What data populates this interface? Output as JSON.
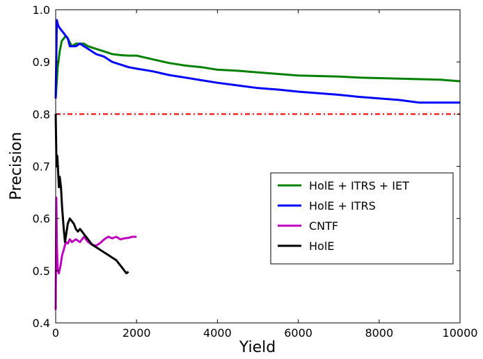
{
  "chart_data": {
    "type": "line",
    "title": "",
    "xlabel": "Yield",
    "ylabel": "Precision",
    "xlim": [
      0,
      10000
    ],
    "ylim": [
      0.4,
      1.0
    ],
    "x_ticks": [
      "0",
      "2000",
      "4000",
      "6000",
      "8000",
      "10000"
    ],
    "y_ticks": [
      "0.4",
      "0.5",
      "0.6",
      "0.7",
      "0.8",
      "0.9",
      "1.0"
    ],
    "grid": false,
    "legend_position": "center-right",
    "reference_line": {
      "y": 0.8,
      "style": "dash-dot",
      "color": "#ff0000"
    },
    "series": [
      {
        "name": "HolE + ITRS + IET",
        "color": "#008000",
        "points": [
          [
            0,
            0.83
          ],
          [
            50,
            0.89
          ],
          [
            100,
            0.92
          ],
          [
            150,
            0.94
          ],
          [
            200,
            0.945
          ],
          [
            250,
            0.95
          ],
          [
            300,
            0.945
          ],
          [
            400,
            0.93
          ],
          [
            500,
            0.935
          ],
          [
            600,
            0.935
          ],
          [
            700,
            0.935
          ],
          [
            800,
            0.93
          ],
          [
            1000,
            0.925
          ],
          [
            1200,
            0.92
          ],
          [
            1400,
            0.915
          ],
          [
            1600,
            0.913
          ],
          [
            1800,
            0.912
          ],
          [
            2000,
            0.912
          ],
          [
            2400,
            0.905
          ],
          [
            2800,
            0.898
          ],
          [
            3200,
            0.893
          ],
          [
            3600,
            0.89
          ],
          [
            4000,
            0.885
          ],
          [
            4500,
            0.883
          ],
          [
            5000,
            0.88
          ],
          [
            5500,
            0.877
          ],
          [
            6000,
            0.874
          ],
          [
            6500,
            0.873
          ],
          [
            7000,
            0.872
          ],
          [
            7500,
            0.87
          ],
          [
            8000,
            0.869
          ],
          [
            8500,
            0.868
          ],
          [
            9000,
            0.867
          ],
          [
            9500,
            0.866
          ],
          [
            10000,
            0.863
          ]
        ]
      },
      {
        "name": "HolE + ITRS",
        "color": "#0000ff",
        "points": [
          [
            0,
            0.83
          ],
          [
            30,
            0.98
          ],
          [
            60,
            0.97
          ],
          [
            100,
            0.965
          ],
          [
            150,
            0.96
          ],
          [
            200,
            0.955
          ],
          [
            250,
            0.95
          ],
          [
            300,
            0.945
          ],
          [
            350,
            0.93
          ],
          [
            400,
            0.93
          ],
          [
            500,
            0.93
          ],
          [
            600,
            0.935
          ],
          [
            700,
            0.93
          ],
          [
            800,
            0.925
          ],
          [
            900,
            0.92
          ],
          [
            1000,
            0.915
          ],
          [
            1200,
            0.91
          ],
          [
            1400,
            0.9
          ],
          [
            1600,
            0.895
          ],
          [
            1800,
            0.89
          ],
          [
            2000,
            0.887
          ],
          [
            2400,
            0.882
          ],
          [
            2800,
            0.875
          ],
          [
            3200,
            0.87
          ],
          [
            3600,
            0.865
          ],
          [
            4000,
            0.86
          ],
          [
            4500,
            0.855
          ],
          [
            5000,
            0.85
          ],
          [
            5500,
            0.847
          ],
          [
            6000,
            0.843
          ],
          [
            6500,
            0.84
          ],
          [
            7000,
            0.837
          ],
          [
            7500,
            0.833
          ],
          [
            8000,
            0.83
          ],
          [
            8500,
            0.827
          ],
          [
            9000,
            0.822
          ],
          [
            9500,
            0.822
          ],
          [
            10000,
            0.822
          ]
        ]
      },
      {
        "name": "CNTF",
        "color": "#bf00bf",
        "points": [
          [
            0,
            0.425
          ],
          [
            15,
            0.64
          ],
          [
            30,
            0.55
          ],
          [
            50,
            0.5
          ],
          [
            80,
            0.495
          ],
          [
            120,
            0.51
          ],
          [
            160,
            0.53
          ],
          [
            200,
            0.54
          ],
          [
            250,
            0.555
          ],
          [
            300,
            0.552
          ],
          [
            350,
            0.56
          ],
          [
            400,
            0.555
          ],
          [
            500,
            0.56
          ],
          [
            600,
            0.555
          ],
          [
            700,
            0.565
          ],
          [
            800,
            0.555
          ],
          [
            900,
            0.55
          ],
          [
            1000,
            0.548
          ],
          [
            1100,
            0.553
          ],
          [
            1200,
            0.56
          ],
          [
            1300,
            0.565
          ],
          [
            1400,
            0.562
          ],
          [
            1500,
            0.565
          ],
          [
            1600,
            0.56
          ],
          [
            1700,
            0.562
          ],
          [
            1800,
            0.563
          ],
          [
            1900,
            0.565
          ],
          [
            2000,
            0.565
          ]
        ]
      },
      {
        "name": "HolE",
        "color": "#000000",
        "points": [
          [
            0,
            0.8
          ],
          [
            20,
            0.7
          ],
          [
            40,
            0.72
          ],
          [
            60,
            0.69
          ],
          [
            80,
            0.66
          ],
          [
            100,
            0.68
          ],
          [
            130,
            0.66
          ],
          [
            160,
            0.62
          ],
          [
            200,
            0.58
          ],
          [
            230,
            0.555
          ],
          [
            260,
            0.57
          ],
          [
            300,
            0.59
          ],
          [
            350,
            0.6
          ],
          [
            400,
            0.595
          ],
          [
            450,
            0.59
          ],
          [
            500,
            0.58
          ],
          [
            550,
            0.575
          ],
          [
            600,
            0.58
          ],
          [
            700,
            0.57
          ],
          [
            800,
            0.56
          ],
          [
            900,
            0.55
          ],
          [
            1000,
            0.545
          ],
          [
            1100,
            0.54
          ],
          [
            1200,
            0.535
          ],
          [
            1300,
            0.53
          ],
          [
            1400,
            0.525
          ],
          [
            1500,
            0.52
          ],
          [
            1600,
            0.51
          ],
          [
            1700,
            0.5
          ],
          [
            1750,
            0.495
          ],
          [
            1800,
            0.498
          ]
        ]
      }
    ]
  }
}
